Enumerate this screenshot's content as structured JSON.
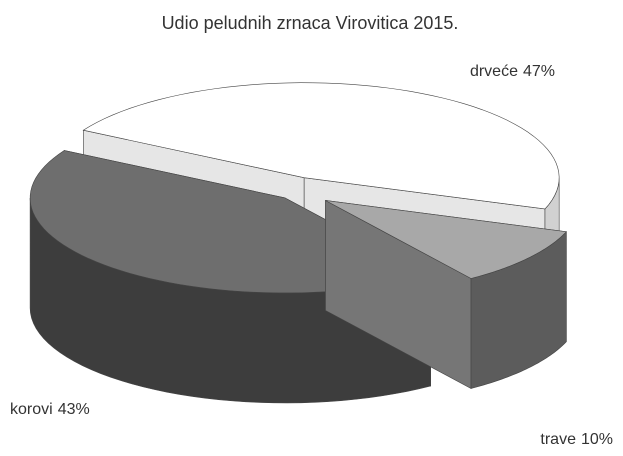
{
  "chart_data": {
    "type": "pie3d",
    "title": "Udio peludnih zrnaca Virovitica 2015.",
    "categories": [
      "drveće",
      "trave",
      "korovi"
    ],
    "values": [
      47,
      10,
      43
    ],
    "value_labels": [
      "47%",
      "10%",
      "43%"
    ],
    "colors": [
      "#ffffff",
      "#a8a8a8",
      "#6e6e6e"
    ]
  }
}
